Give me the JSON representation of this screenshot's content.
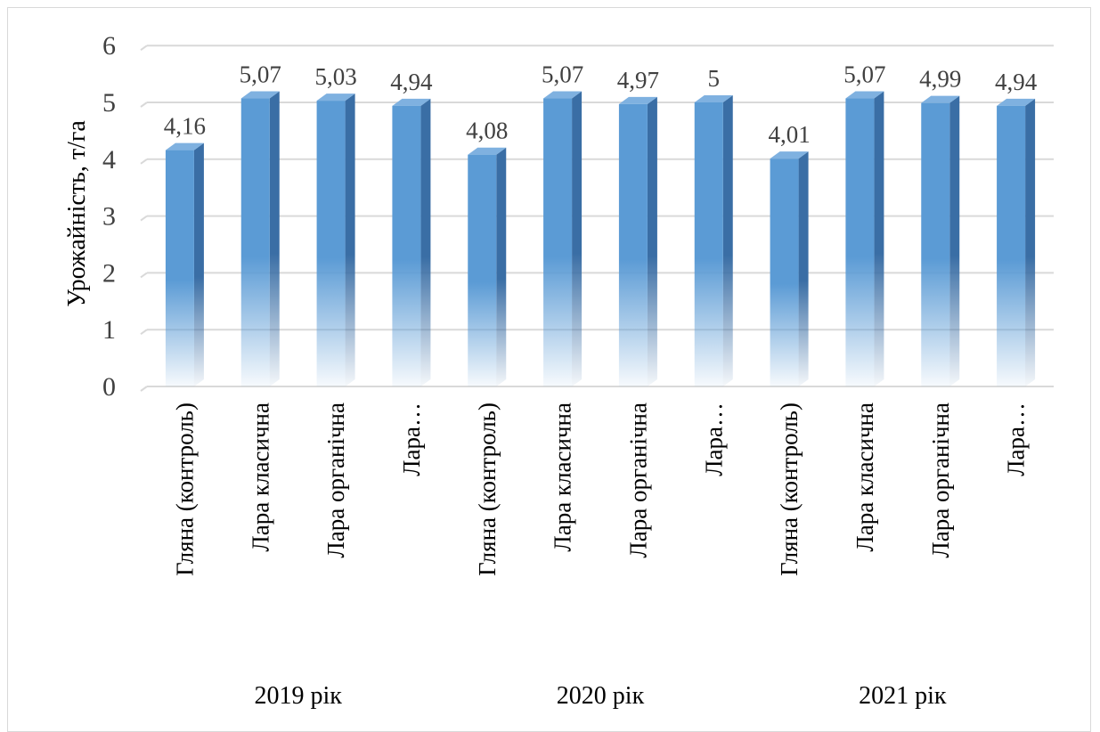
{
  "chart_data": {
    "type": "bar",
    "ylabel": "Урожайність, т/га",
    "ylim": [
      0,
      6
    ],
    "yticks": [
      "0",
      "1",
      "2",
      "3",
      "4",
      "5",
      "6"
    ],
    "grid": true,
    "legend": "none",
    "groups": [
      "2019 рік",
      "2020 рік",
      "2021 рік"
    ],
    "categories": [
      "Гляна (контроль)",
      "Лара класична",
      "Лара органічна",
      "Лара…",
      "Гляна (контроль)",
      "Лара класична",
      "Лара органічна",
      "Лара…",
      "Гляна (контроль)",
      "Лара класична",
      "Лара органічна",
      "Лара…"
    ],
    "values": [
      4.16,
      5.07,
      5.03,
      4.94,
      4.08,
      5.07,
      4.97,
      5.0,
      4.01,
      5.07,
      4.99,
      4.94
    ],
    "data_labels": [
      "4,16",
      "5,07",
      "5,03",
      "4,94",
      "4,08",
      "5,07",
      "4,97",
      "5",
      "4,01",
      "5,07",
      "4,99",
      "4,94"
    ],
    "colors": {
      "bar_top": "#5b9bd5",
      "bar_side": "#3a6ea5",
      "bar_cap": "#7fb1e0",
      "grid": "#d9d9d9"
    }
  }
}
